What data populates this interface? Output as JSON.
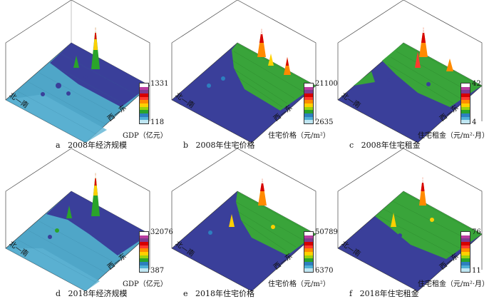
{
  "directions": {
    "north": "北",
    "south": "南",
    "west": "西",
    "east": "东"
  },
  "colorbar_colors": [
    "#ffffff",
    "#b93ca0",
    "#7d3b8f",
    "#d60000",
    "#ff3a2e",
    "#ff8a00",
    "#ffd000",
    "#9ad20c",
    "#2aa42a",
    "#2d7fbf",
    "#4fb0d6",
    "#bfe6f2"
  ],
  "panels": [
    {
      "letter": "a",
      "title": "2008年经济规模",
      "max": "1331",
      "min": "118",
      "unit": "GDP（亿元）",
      "base": "#4fa6c8",
      "second": "#3a3f9a",
      "third": "#4a49a3"
    },
    {
      "letter": "b",
      "title": "2008年住宅价格",
      "max": "21100",
      "min": "2635",
      "unit": "住宅价格（元/m²）",
      "base": "#3a3f9a",
      "second": "#39a43a",
      "third": "#3b3f98"
    },
    {
      "letter": "c",
      "title": "2008年住宅租金",
      "max": "42",
      "min": "4",
      "unit": "住宅租金（元/m²·月）",
      "base": "#3a3f9a",
      "second": "#39a43a",
      "third": "#3b3f98"
    },
    {
      "letter": "d",
      "title": "2018年经济规模",
      "max": "32076",
      "min": "387",
      "unit": "GDP（亿元）",
      "base": "#4fa6c8",
      "second": "#3a3f9a",
      "third": "#4e8fc2"
    },
    {
      "letter": "e",
      "title": "2018年住宅价格",
      "max": "50789",
      "min": "6370",
      "unit": "住宅价格（元/m²）",
      "base": "#3a3f9a",
      "second": "#39a43a",
      "third": "#3b3f98"
    },
    {
      "letter": "f",
      "title": "2018年住宅租金",
      "max": "76",
      "min": "11",
      "unit": "住宅租金（元/m²·月）",
      "base": "#3a3f9a",
      "second": "#39a43a",
      "third": "#3b3f98"
    }
  ]
}
